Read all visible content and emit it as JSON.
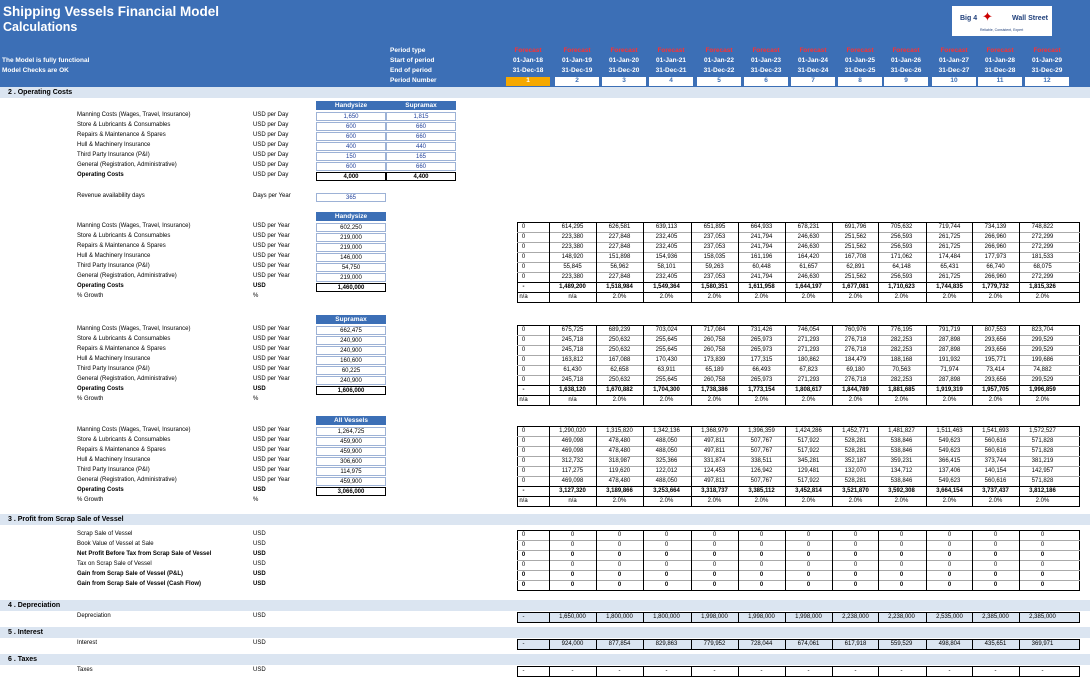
{
  "header": {
    "title": "Shipping Vessels Financial Model",
    "subtitle": "Calculations",
    "msg1": "The Model is fully functional",
    "msg2": "Model Checks are OK",
    "period_labels": [
      "Period type",
      "Start of period",
      "End of period",
      "Period Number"
    ],
    "logo_text1": "Big 4",
    "logo_text2": "Wall Street",
    "logo_tag": "Reliable, Consistent, Expert"
  },
  "periods": {
    "types": [
      "Forecast",
      "Forecast",
      "Forecast",
      "Forecast",
      "Forecast",
      "Forecast",
      "Forecast",
      "Forecast",
      "Forecast",
      "Forecast",
      "Forecast",
      "Forecast"
    ],
    "starts": [
      "01-Jan-18",
      "01-Jan-19",
      "01-Jan-20",
      "01-Jan-21",
      "01-Jan-22",
      "01-Jan-23",
      "01-Jan-24",
      "01-Jan-25",
      "01-Jan-26",
      "01-Jan-27",
      "01-Jan-28",
      "01-Jan-29"
    ],
    "ends": [
      "31-Dec-18",
      "31-Dec-19",
      "31-Dec-20",
      "31-Dec-21",
      "31-Dec-22",
      "31-Dec-23",
      "31-Dec-24",
      "31-Dec-25",
      "31-Dec-26",
      "31-Dec-27",
      "31-Dec-28",
      "31-Dec-29"
    ],
    "numbers": [
      "1",
      "2",
      "3",
      "4",
      "5",
      "6",
      "7",
      "8",
      "9",
      "10",
      "11",
      "12"
    ]
  },
  "sections": {
    "s2": "2 . Operating Costs",
    "s3": "3 . Profit from Scrap Sale of Vessel",
    "s4": "4 . Depreciation",
    "s5": "5 . Interest",
    "s6": "6 . Taxes"
  },
  "daily": {
    "col1": "Handysize",
    "col2": "Supramax",
    "rows": [
      {
        "label": "Manning Costs (Wages, Travel, Insurance)",
        "unit": "USD per Day",
        "v1": "1,650",
        "v2": "1,815"
      },
      {
        "label": "Store & Lubricants & Consumables",
        "unit": "USD per Day",
        "v1": "600",
        "v2": "660"
      },
      {
        "label": "Repairs & Maintenance & Spares",
        "unit": "USD per Day",
        "v1": "600",
        "v2": "660"
      },
      {
        "label": "Hull & Machinery Insurance",
        "unit": "USD per Day",
        "v1": "400",
        "v2": "440"
      },
      {
        "label": "Third Party Insurance (P&I)",
        "unit": "USD per Day",
        "v1": "150",
        "v2": "165"
      },
      {
        "label": "General (Registration, Administrative)",
        "unit": "USD per Day",
        "v1": "600",
        "v2": "660"
      },
      {
        "label": "Operating Costs",
        "unit": "USD per Day",
        "v1": "4,000",
        "v2": "4,400",
        "bold": true
      }
    ],
    "avail_label": "Revenue availability days",
    "avail_unit": "Days per Year",
    "avail_value": "365"
  },
  "blocks": [
    {
      "head": "Handysize",
      "rows": [
        {
          "label": "Manning Costs (Wages, Travel, Insurance)",
          "unit": "USD per Year",
          "base": "602,250",
          "vals": [
            "0",
            "614,295",
            "626,581",
            "639,113",
            "651,895",
            "664,933",
            "678,231",
            "691,796",
            "705,632",
            "719,744",
            "734,139",
            "748,822"
          ]
        },
        {
          "label": "Store & Lubricants & Consumables",
          "unit": "USD per Year",
          "base": "219,000",
          "vals": [
            "0",
            "223,380",
            "227,848",
            "232,405",
            "237,053",
            "241,794",
            "246,630",
            "251,562",
            "256,593",
            "261,725",
            "266,960",
            "272,299"
          ]
        },
        {
          "label": "Repairs & Maintenance & Spares",
          "unit": "USD per Year",
          "base": "219,000",
          "vals": [
            "0",
            "223,380",
            "227,848",
            "232,405",
            "237,053",
            "241,794",
            "246,630",
            "251,562",
            "256,593",
            "261,725",
            "266,960",
            "272,299"
          ]
        },
        {
          "label": "Hull & Machinery Insurance",
          "unit": "USD per Year",
          "base": "146,000",
          "vals": [
            "0",
            "148,920",
            "151,898",
            "154,936",
            "158,035",
            "161,196",
            "164,420",
            "167,708",
            "171,062",
            "174,484",
            "177,973",
            "181,533"
          ]
        },
        {
          "label": "Third Party Insurance (P&I)",
          "unit": "USD per Year",
          "base": "54,750",
          "vals": [
            "0",
            "55,845",
            "56,962",
            "58,101",
            "59,263",
            "60,448",
            "61,657",
            "62,891",
            "64,148",
            "65,431",
            "66,740",
            "68,075"
          ]
        },
        {
          "label": "General (Registration, Administrative)",
          "unit": "USD per Year",
          "base": "219,000",
          "vals": [
            "0",
            "223,380",
            "227,848",
            "232,405",
            "237,053",
            "241,794",
            "246,630",
            "251,562",
            "256,593",
            "261,725",
            "266,960",
            "272,299"
          ]
        },
        {
          "label": "Operating Costs",
          "unit": "USD",
          "base": "1,460,000",
          "vals": [
            "-",
            "1,489,200",
            "1,518,984",
            "1,549,364",
            "1,580,351",
            "1,611,958",
            "1,644,197",
            "1,677,081",
            "1,710,623",
            "1,744,835",
            "1,779,732",
            "1,815,326"
          ],
          "bold": true
        },
        {
          "label": "% Growth",
          "unit": "%",
          "base": "",
          "vals": [
            "n/a",
            "n/a",
            "2.0%",
            "2.0%",
            "2.0%",
            "2.0%",
            "2.0%",
            "2.0%",
            "2.0%",
            "2.0%",
            "2.0%",
            "2.0%"
          ]
        }
      ]
    },
    {
      "head": "Supramax",
      "rows": [
        {
          "label": "Manning Costs (Wages, Travel, Insurance)",
          "unit": "USD per Year",
          "base": "662,475",
          "vals": [
            "0",
            "675,725",
            "689,239",
            "703,024",
            "717,084",
            "731,426",
            "746,054",
            "760,976",
            "776,195",
            "791,719",
            "807,553",
            "823,704"
          ]
        },
        {
          "label": "Store & Lubricants & Consumables",
          "unit": "USD per Year",
          "base": "240,900",
          "vals": [
            "0",
            "245,718",
            "250,632",
            "255,645",
            "260,758",
            "265,973",
            "271,293",
            "276,718",
            "282,253",
            "287,898",
            "293,656",
            "299,529"
          ]
        },
        {
          "label": "Repairs & Maintenance & Spares",
          "unit": "USD per Year",
          "base": "240,900",
          "vals": [
            "0",
            "245,718",
            "250,632",
            "255,645",
            "260,758",
            "265,973",
            "271,293",
            "276,718",
            "282,253",
            "287,898",
            "293,656",
            "299,529"
          ]
        },
        {
          "label": "Hull & Machinery Insurance",
          "unit": "USD per Year",
          "base": "160,600",
          "vals": [
            "0",
            "163,812",
            "167,088",
            "170,430",
            "173,839",
            "177,315",
            "180,862",
            "184,479",
            "188,168",
            "191,932",
            "195,771",
            "199,686"
          ]
        },
        {
          "label": "Third Party Insurance (P&I)",
          "unit": "USD per Year",
          "base": "60,225",
          "vals": [
            "0",
            "61,430",
            "62,658",
            "63,911",
            "65,189",
            "66,493",
            "67,823",
            "69,180",
            "70,563",
            "71,974",
            "73,414",
            "74,882"
          ]
        },
        {
          "label": "General (Registration, Administrative)",
          "unit": "USD per Year",
          "base": "240,900",
          "vals": [
            "0",
            "245,718",
            "250,632",
            "255,645",
            "260,758",
            "265,973",
            "271,293",
            "276,718",
            "282,253",
            "287,898",
            "293,656",
            "299,529"
          ]
        },
        {
          "label": "Operating Costs",
          "unit": "USD",
          "base": "1,606,000",
          "vals": [
            "-",
            "1,638,120",
            "1,670,882",
            "1,704,300",
            "1,738,386",
            "1,773,154",
            "1,808,617",
            "1,844,789",
            "1,881,685",
            "1,919,319",
            "1,957,705",
            "1,996,859"
          ],
          "bold": true
        },
        {
          "label": "% Growth",
          "unit": "%",
          "base": "",
          "vals": [
            "n/a",
            "n/a",
            "2.0%",
            "2.0%",
            "2.0%",
            "2.0%",
            "2.0%",
            "2.0%",
            "2.0%",
            "2.0%",
            "2.0%",
            "2.0%"
          ]
        }
      ]
    },
    {
      "head": "All Vessels",
      "rows": [
        {
          "label": "Manning Costs (Wages, Travel, Insurance)",
          "unit": "USD per Year",
          "base": "1,264,725",
          "vals": [
            "0",
            "1,290,020",
            "1,315,820",
            "1,342,136",
            "1,368,979",
            "1,396,359",
            "1,424,286",
            "1,452,771",
            "1,481,827",
            "1,511,463",
            "1,541,693",
            "1,572,527"
          ]
        },
        {
          "label": "Store & Lubricants & Consumables",
          "unit": "USD per Year",
          "base": "459,900",
          "vals": [
            "0",
            "469,098",
            "478,480",
            "488,050",
            "497,811",
            "507,767",
            "517,922",
            "528,281",
            "538,846",
            "549,623",
            "560,616",
            "571,828"
          ]
        },
        {
          "label": "Repairs & Maintenance & Spares",
          "unit": "USD per Year",
          "base": "459,900",
          "vals": [
            "0",
            "469,098",
            "478,480",
            "488,050",
            "497,811",
            "507,767",
            "517,922",
            "528,281",
            "538,846",
            "549,623",
            "560,616",
            "571,828"
          ]
        },
        {
          "label": "Hull & Machinery Insurance",
          "unit": "USD per Year",
          "base": "306,600",
          "vals": [
            "0",
            "312,732",
            "318,987",
            "325,366",
            "331,874",
            "338,511",
            "345,281",
            "352,187",
            "359,231",
            "366,415",
            "373,744",
            "381,219"
          ]
        },
        {
          "label": "Third Party Insurance (P&I)",
          "unit": "USD per Year",
          "base": "114,975",
          "vals": [
            "0",
            "117,275",
            "119,620",
            "122,012",
            "124,453",
            "126,942",
            "129,481",
            "132,070",
            "134,712",
            "137,406",
            "140,154",
            "142,957"
          ]
        },
        {
          "label": "General (Registration, Administrative)",
          "unit": "USD per Year",
          "base": "459,900",
          "vals": [
            "0",
            "469,098",
            "478,480",
            "488,050",
            "497,811",
            "507,767",
            "517,922",
            "528,281",
            "538,846",
            "549,623",
            "560,616",
            "571,828"
          ]
        },
        {
          "label": "Operating Costs",
          "unit": "USD",
          "base": "3,066,000",
          "vals": [
            "-",
            "3,127,320",
            "3,189,866",
            "3,253,664",
            "3,318,737",
            "3,385,112",
            "3,452,814",
            "3,521,870",
            "3,592,308",
            "3,664,154",
            "3,737,437",
            "3,812,186"
          ],
          "bold": true
        },
        {
          "label": "% Growth",
          "unit": "%",
          "base": "",
          "vals": [
            "n/a",
            "n/a",
            "2.0%",
            "2.0%",
            "2.0%",
            "2.0%",
            "2.0%",
            "2.0%",
            "2.0%",
            "2.0%",
            "2.0%",
            "2.0%"
          ]
        }
      ]
    }
  ],
  "scrap": [
    {
      "label": "Scrap Sale of Vessel",
      "unit": "USD",
      "bold": false
    },
    {
      "label": "Book Value of Vessel at Sale",
      "unit": "USD",
      "bold": false
    },
    {
      "label": "Net Profit Before Tax from Scrap Sale of Vessel",
      "unit": "USD",
      "bold": true
    },
    {
      "label": "Tax on Scrap Sale of Vessel",
      "unit": "USD",
      "bold": false
    },
    {
      "label": "Gain from Scrap Sale of Vessel (P&L)",
      "unit": "USD",
      "bold": true
    },
    {
      "label": "Gain from Scrap Sale of Vessel (Cash Flow)",
      "unit": "USD",
      "bold": true
    }
  ],
  "scrap_vals": [
    "0",
    "0",
    "0",
    "0",
    "0",
    "0",
    "0",
    "0",
    "0",
    "0",
    "0",
    "0"
  ],
  "depreciation": {
    "label": "Depreciation",
    "unit": "USD",
    "vals": [
      "-",
      "1,650,000",
      "1,800,000",
      "1,800,000",
      "1,998,000",
      "1,998,000",
      "1,998,000",
      "2,238,000",
      "2,238,000",
      "2,535,000",
      "2,385,000",
      "2,385,000"
    ]
  },
  "interest": {
    "label": "Interest",
    "unit": "USD",
    "vals": [
      "-",
      "924,000",
      "877,854",
      "829,863",
      "779,952",
      "728,044",
      "674,061",
      "617,918",
      "559,529",
      "498,804",
      "435,651",
      "369,971"
    ]
  },
  "taxes": {
    "label": "Taxes",
    "unit": "USD",
    "vals": [
      "-",
      "-",
      "-",
      "-",
      "-",
      "-",
      "-",
      "-",
      "-",
      "-",
      "-",
      "-"
    ]
  }
}
